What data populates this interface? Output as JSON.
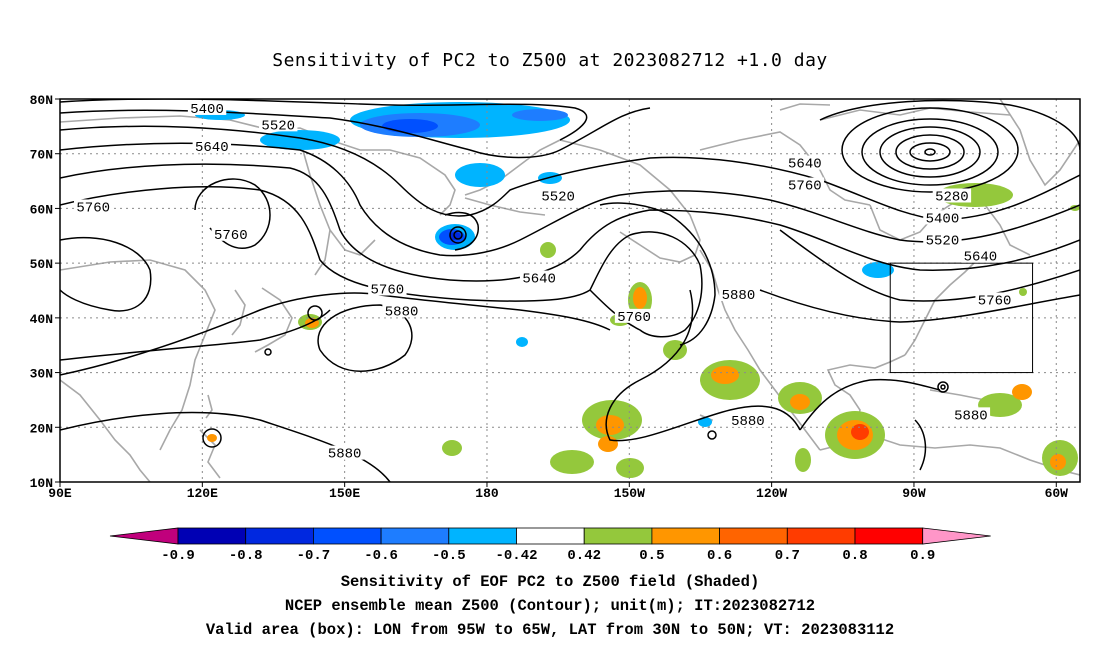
{
  "title": "Sensitivity of PC2 to Z500 at 2023082712 +1.0 day",
  "map": {
    "lat_ticks": [
      "80N",
      "70N",
      "60N",
      "50N",
      "40N",
      "30N",
      "20N",
      "10N"
    ],
    "lon_ticks": [
      "90E",
      "120E",
      "150E",
      "180",
      "150W",
      "120W",
      "90W",
      "60W"
    ],
    "extent": {
      "lon_min": 90,
      "lon_max": 305,
      "lat_min": 10,
      "lat_max": 80
    },
    "valid_box": {
      "lon_min": 265,
      "lon_max": 295,
      "lat_min": 30,
      "lat_max": 50
    },
    "contour_labels": [
      {
        "text": "5400",
        "lon": 121,
        "lat": 78
      },
      {
        "text": "5520",
        "lon": 136,
        "lat": 75
      },
      {
        "text": "5640",
        "lon": 122,
        "lat": 71
      },
      {
        "text": "5760",
        "lon": 97,
        "lat": 60
      },
      {
        "text": "5760",
        "lon": 126,
        "lat": 55
      },
      {
        "text": "5520",
        "lon": 195,
        "lat": 62
      },
      {
        "text": "5640",
        "lon": 247,
        "lat": 68
      },
      {
        "text": "5760",
        "lon": 247,
        "lat": 64
      },
      {
        "text": "5280",
        "lon": 278,
        "lat": 62
      },
      {
        "text": "5400",
        "lon": 276,
        "lat": 58
      },
      {
        "text": "5520",
        "lon": 276,
        "lat": 54
      },
      {
        "text": "5640",
        "lon": 284,
        "lat": 51
      },
      {
        "text": "5760",
        "lon": 159,
        "lat": 45
      },
      {
        "text": "5880",
        "lon": 162,
        "lat": 41
      },
      {
        "text": "5640",
        "lon": 191,
        "lat": 47
      },
      {
        "text": "5760",
        "lon": 211,
        "lat": 40
      },
      {
        "text": "5880",
        "lon": 233,
        "lat": 44
      },
      {
        "text": "5760",
        "lon": 287,
        "lat": 43
      },
      {
        "text": "5880",
        "lon": 150,
        "lat": 15
      },
      {
        "text": "5880",
        "lon": 235,
        "lat": 21
      },
      {
        "text": "5880",
        "lon": 282,
        "lat": 22
      }
    ]
  },
  "colorbar": {
    "labels": [
      "-0.9",
      "-0.8",
      "-0.7",
      "-0.6",
      "-0.5",
      "-0.42",
      "0.42",
      "0.5",
      "0.6",
      "0.7",
      "0.8",
      "0.9"
    ],
    "colors": [
      "#c0007c",
      "#0000b4",
      "#0028e0",
      "#0050ff",
      "#1e7dff",
      "#00b4ff",
      "#ffffff",
      "#94c83c",
      "#ff9600",
      "#ff6400",
      "#ff3c00",
      "#ff0000",
      "#ff96c8"
    ]
  },
  "captions": {
    "line1": "Sensitivity of EOF PC2 to Z500 field (Shaded)",
    "line2": "NCEP ensemble mean Z500 (Contour); unit(m); IT:2023082712",
    "line3": "Valid area (box): LON from 95W to 65W, LAT from 30N to 50N; VT: 2023083112"
  }
}
